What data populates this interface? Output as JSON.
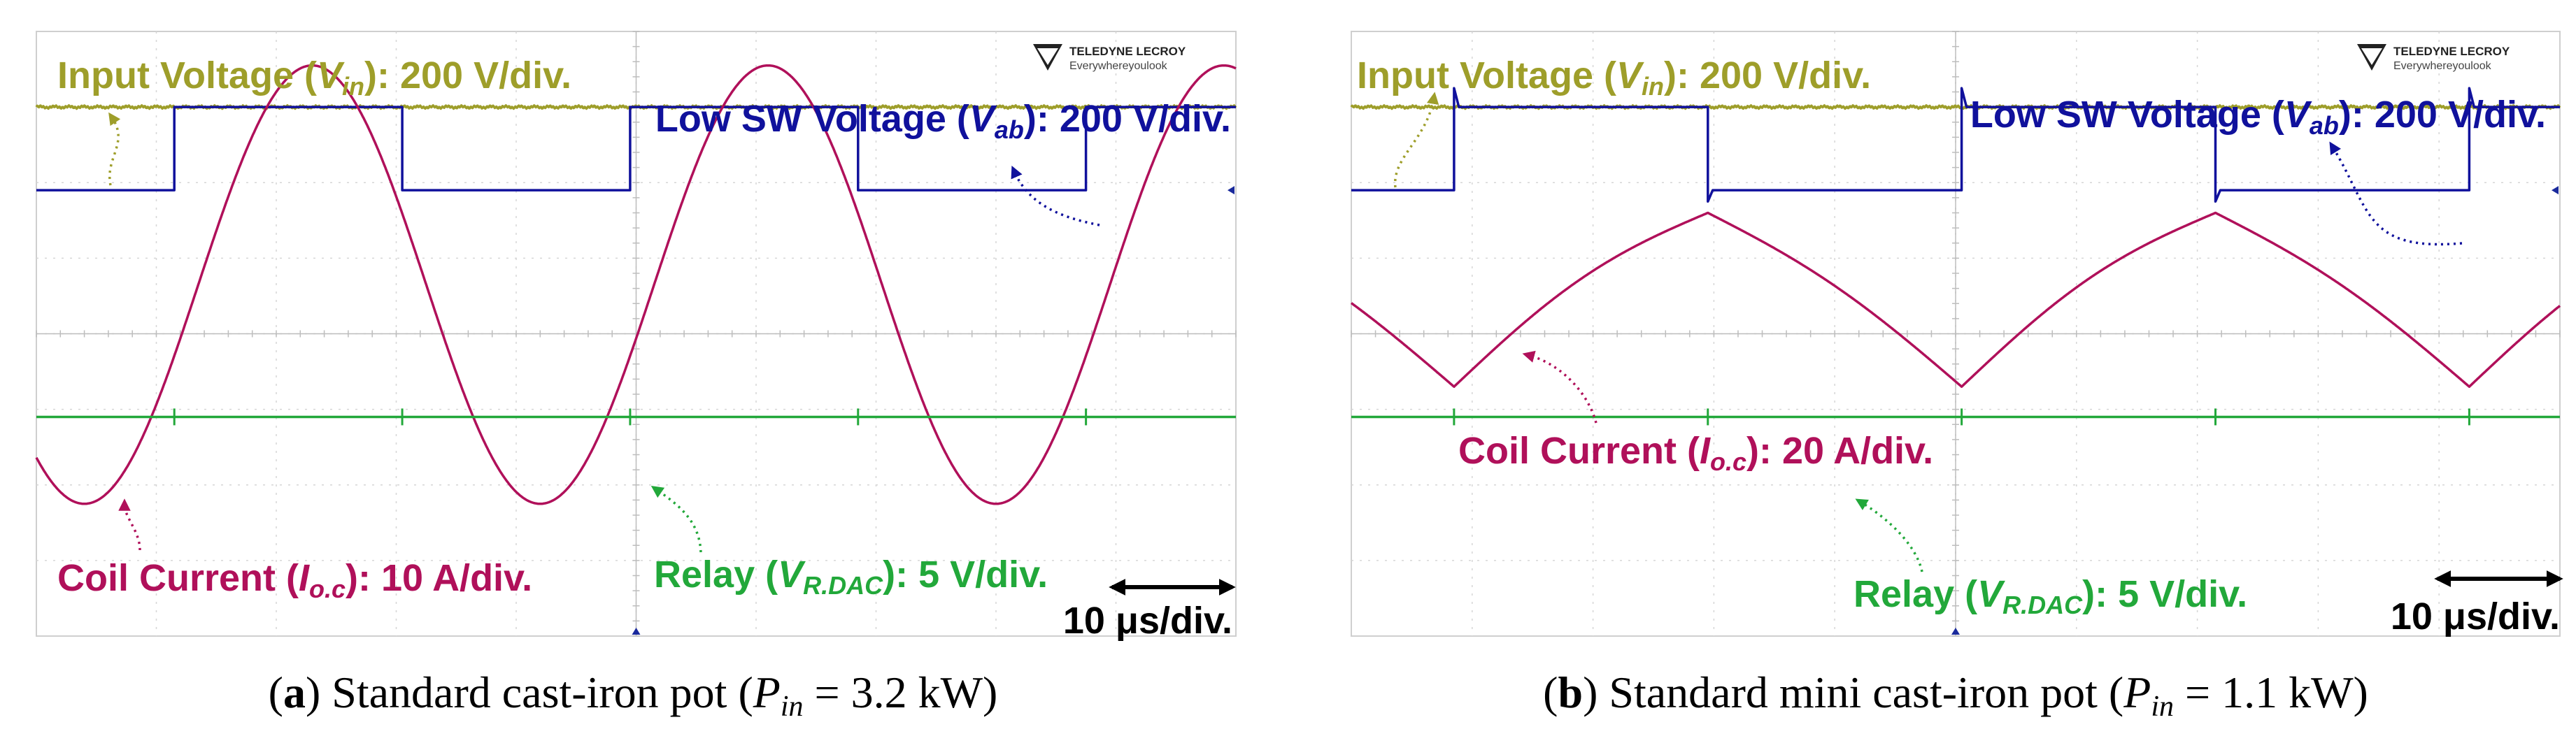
{
  "chart_data": [
    {
      "type": "line",
      "panel_id": "a",
      "caption": {
        "letter": "(a)",
        "text": "Standard cast-iron pot",
        "param_pre": "(P",
        "param_sub": "in",
        "param_post": " = 3.2 kW)"
      },
      "timebase_label": "10 μs/div.",
      "grid": {
        "h_divisions": 10,
        "v_divisions": 8
      },
      "brand": {
        "line1": "TELEDYNE LECROY",
        "line2": "Everywhereyoulook"
      },
      "period_divisions": 3.8,
      "series": [
        {
          "name": "Input Voltage",
          "color": "#9e9e2a",
          "label_pre": "Input Voltage (V",
          "label_sub": "in",
          "label_post": "): 200 V/div.",
          "kind": "dc",
          "level_div": 3.0
        },
        {
          "name": "Low SW Voltage",
          "color": "#10119c",
          "label_pre": "Low SW Voltage (V",
          "label_sub": "ab",
          "label_post": "): 200 V/div.",
          "kind": "square",
          "low_div": 1.9,
          "high_div": 3.0,
          "spike_div": 0.0,
          "duty": 0.5,
          "rise_at_div": 1.15
        },
        {
          "name": "Coil Current",
          "color": "#b0105a",
          "label_pre": "Coil Current (I",
          "label_sub": "o.c",
          "label_post": "): 10 A/div.",
          "kind": "sine",
          "offset_div": 0.65,
          "amplitude_div": 2.9,
          "peak_at_div": 2.3
        },
        {
          "name": "Relay",
          "color": "#22a83a",
          "label_pre": "Relay (V",
          "label_sub": "R.DAC",
          "label_post": "): 5 V/div.",
          "kind": "dc_spikes",
          "level_div": -1.1
        }
      ]
    },
    {
      "type": "line",
      "panel_id": "b",
      "caption": {
        "letter": "(b)",
        "text": "Standard mini cast-iron pot",
        "param_pre": "(P",
        "param_sub": "in",
        "param_post": " = 1.1 kW)"
      },
      "timebase_label": "10 μs/div.",
      "grid": {
        "h_divisions": 10,
        "v_divisions": 8
      },
      "brand": {
        "line1": "TELEDYNE LECROY",
        "line2": "Everywhereyoulook"
      },
      "period_divisions": 4.2,
      "series": [
        {
          "name": "Input Voltage",
          "color": "#9e9e2a",
          "label_pre": "Input Voltage (V",
          "label_sub": "in",
          "label_post": "): 200 V/div.",
          "kind": "dc",
          "level_div": 3.0
        },
        {
          "name": "Low SW Voltage",
          "color": "#10119c",
          "label_pre": "Low SW Voltage (V",
          "label_sub": "ab",
          "label_post": "): 200 V/div.",
          "kind": "square",
          "low_div": 1.9,
          "high_div": 3.0,
          "spike_div": 0.25,
          "duty": 0.5,
          "rise_at_div": 0.85
        },
        {
          "name": "Coil Current",
          "color": "#b0105a",
          "label_pre": "Coil Current (I",
          "label_sub": "o.c",
          "label_post": "): 20 A/div.",
          "kind": "triangle",
          "max_div": 1.6,
          "min_div": -0.7,
          "peak_at_div": 2.95
        },
        {
          "name": "Relay",
          "color": "#22a83a",
          "label_pre": "Relay (V",
          "label_sub": "R.DAC",
          "label_post": "): 5 V/div.",
          "kind": "dc_spikes",
          "level_div": -1.1
        }
      ]
    }
  ]
}
